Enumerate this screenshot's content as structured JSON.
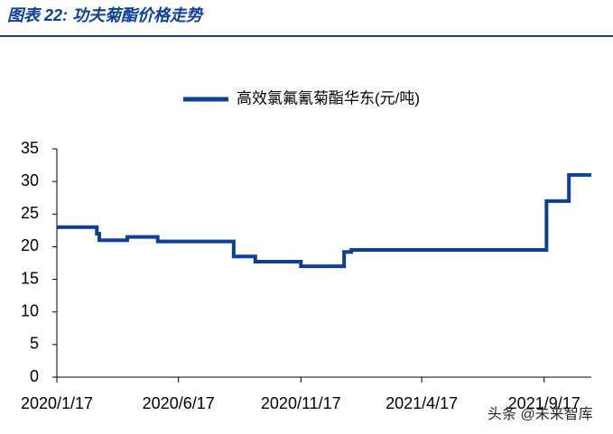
{
  "chart_data": {
    "type": "line",
    "title": "图表 22:  功夫菊酯价格走势",
    "x": [
      "2020/1/17",
      "2020/3/7",
      "2020/3/7",
      "2020/3/10",
      "2020/3/10",
      "2020/4/14",
      "2020/4/14",
      "2020/5/22",
      "2020/5/22",
      "2020/8/25",
      "2020/8/25",
      "2020/9/21",
      "2020/9/21",
      "2020/11/17",
      "2020/11/17",
      "2021/1/10",
      "2021/1/10",
      "2021/1/19",
      "2021/1/19",
      "2021/9/20",
      "2021/9/20",
      "2021/10/18",
      "2021/10/18",
      "2021/11/15"
    ],
    "series": [
      {
        "name": "高效氯氟氰菊酯华东(元/吨)",
        "color": "#0b3f9b",
        "values": [
          23,
          23,
          22,
          22,
          21,
          21,
          21.5,
          21.5,
          20.8,
          20.8,
          18.5,
          18.5,
          17.7,
          17.7,
          17,
          17,
          19.2,
          19.2,
          19.5,
          19.5,
          27,
          27,
          31,
          31
        ]
      }
    ],
    "xlim": [
      "2020/1/17",
      "2021/11/15"
    ],
    "xticks": [
      "2020/1/17",
      "2020/6/17",
      "2020/11/17",
      "2021/4/17",
      "2021/9/17"
    ],
    "ylim": [
      0,
      35
    ],
    "yticks": [
      0,
      5,
      10,
      15,
      20,
      25,
      30,
      35
    ],
    "grid": false,
    "watermark": "头条 @未来智库"
  }
}
